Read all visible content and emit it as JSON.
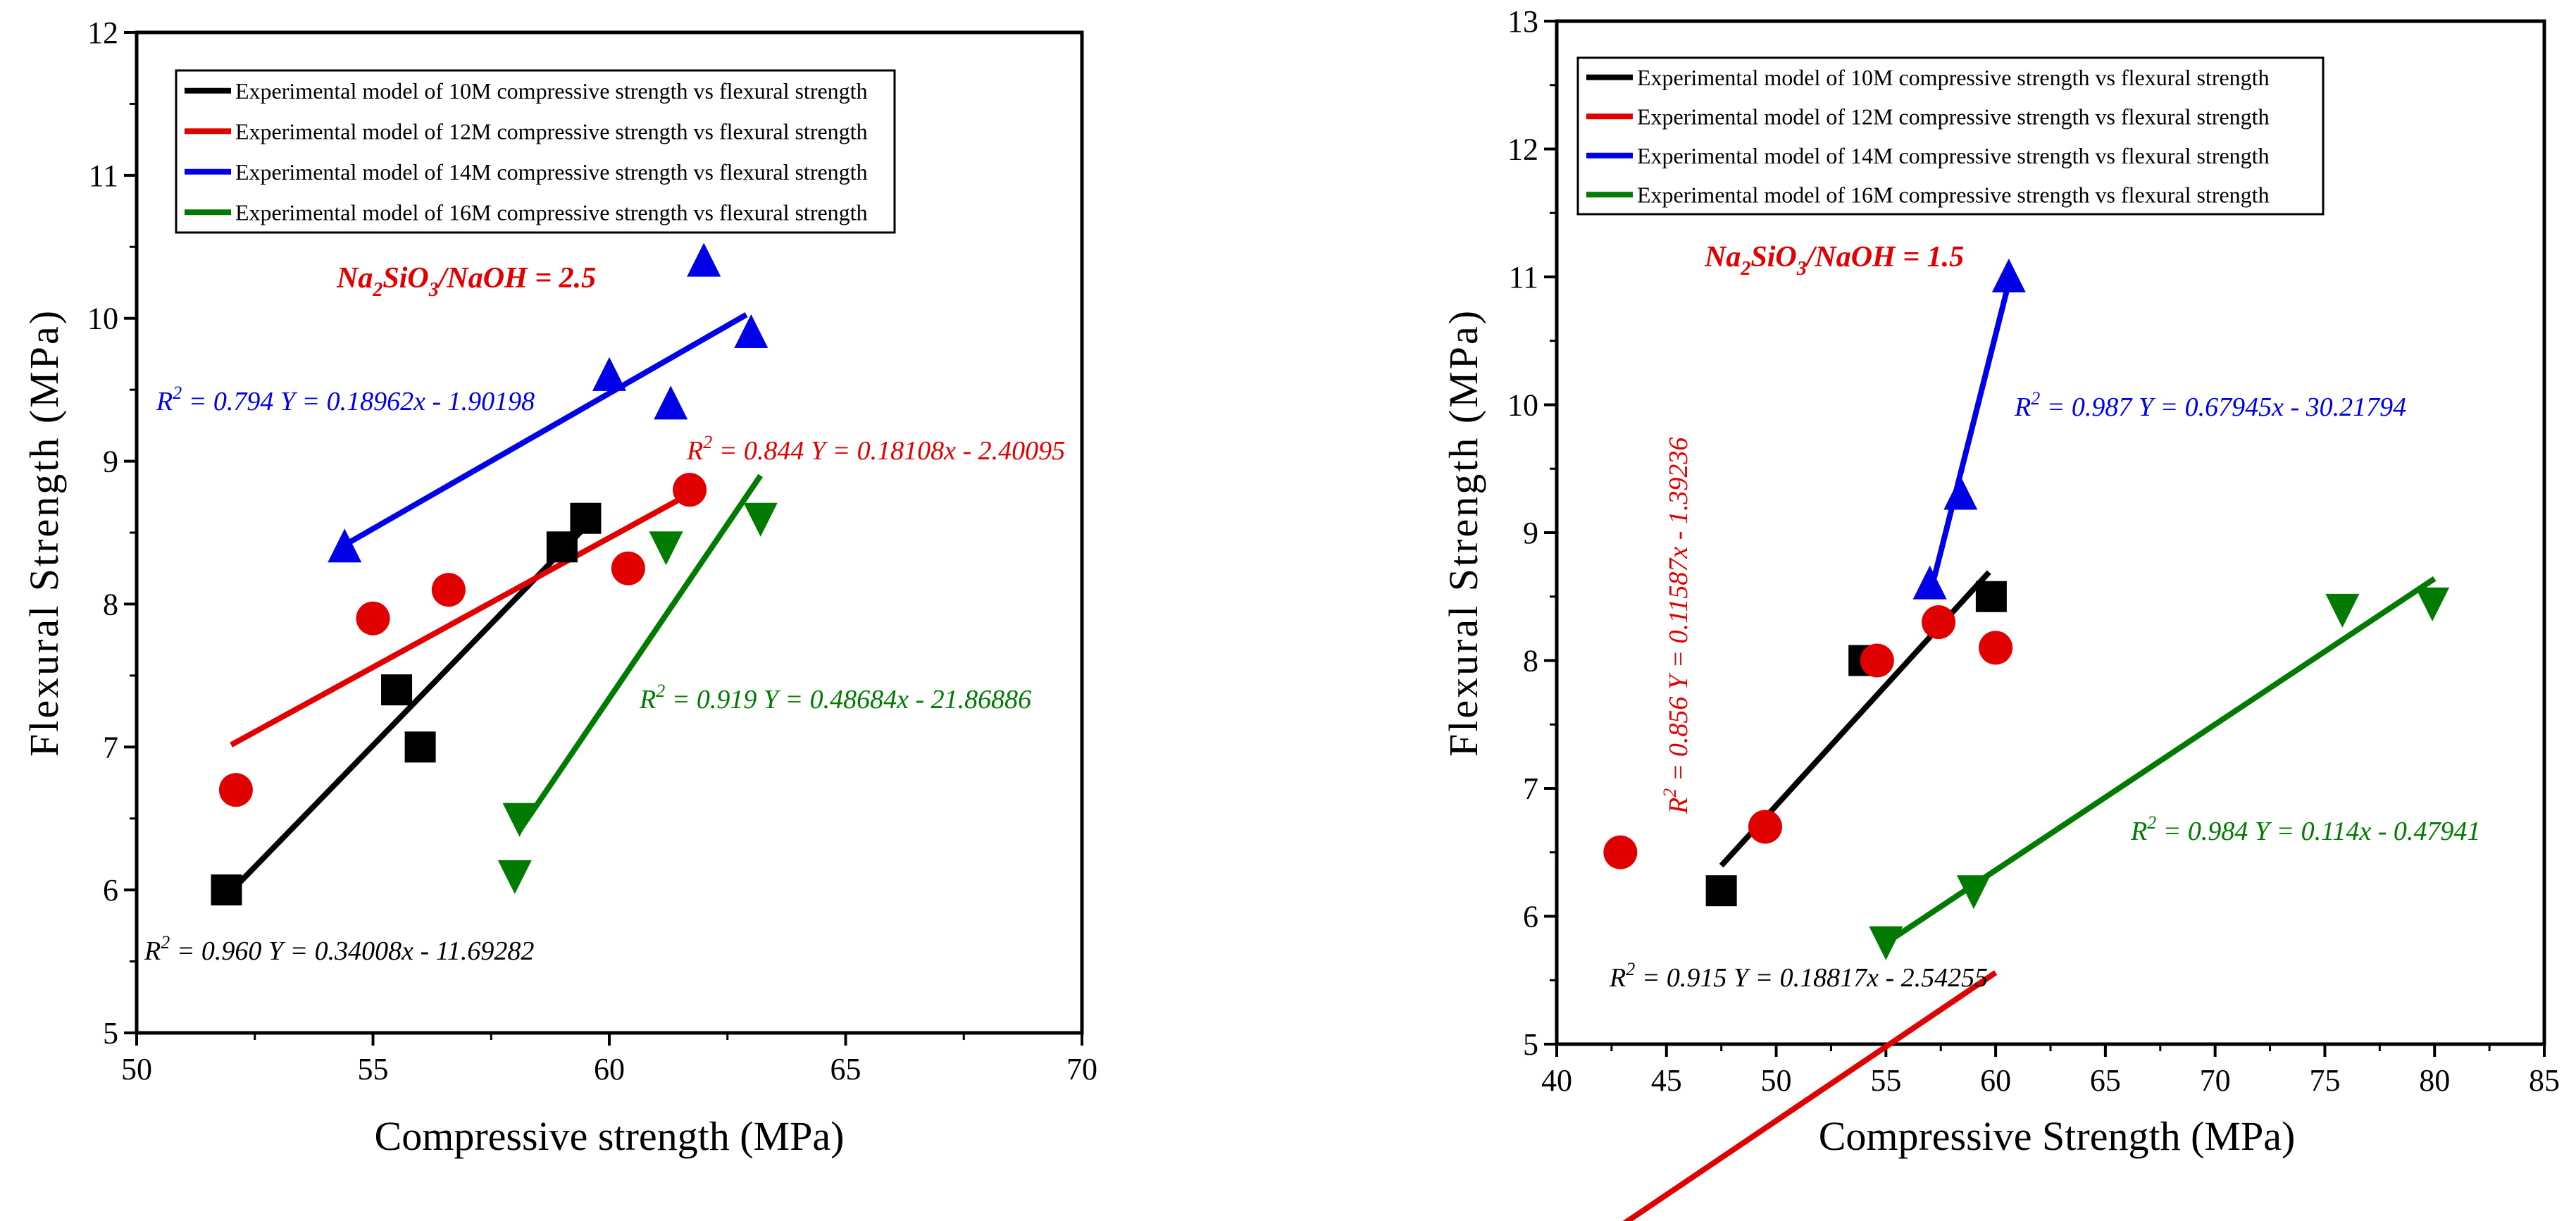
{
  "chart_data": [
    {
      "type": "scatter",
      "title": "",
      "xlabel": "Compressive strength (MPa)",
      "ylabel": "Flexural Strength (MPa)",
      "xlim": [
        50,
        70
      ],
      "ylim": [
        5,
        12
      ],
      "xticks": [
        50,
        55,
        60,
        65,
        70
      ],
      "yticks": [
        5,
        6,
        7,
        8,
        9,
        10,
        11,
        12
      ],
      "ratio_label": {
        "main": "Na",
        "s1": "2",
        "mid": "SiO",
        "s2": "3",
        "tail": "/NaOH = 2.5",
        "color": "#e00000"
      },
      "series": [
        {
          "name": "Experimental model of 10M compressive strength vs flexural strength",
          "color": "#000000",
          "marker": "square",
          "points": [
            [
              51.9,
              6.0
            ],
            [
              55.5,
              7.4
            ],
            [
              56.0,
              7.0
            ],
            [
              59.0,
              8.4
            ],
            [
              59.5,
              8.6
            ]
          ],
          "fit": {
            "x": [
              52.0,
              59.4
            ]
          },
          "annotation": {
            "r2": "0.960",
            "eq": "Y = 0.34008x - 11.69282"
          }
        },
        {
          "name": "Experimental model of 12M compressive strength vs flexural strength",
          "color": "#e00000",
          "marker": "circle",
          "points": [
            [
              52.1,
              6.7
            ],
            [
              55.0,
              7.9
            ],
            [
              56.6,
              8.1
            ],
            [
              60.4,
              8.25
            ],
            [
              61.7,
              8.8
            ]
          ],
          "fit": {
            "x": [
              52.0,
              61.6
            ]
          },
          "annotation": {
            "r2": "0.844",
            "eq": "Y = 0.18108x - 2.40095"
          }
        },
        {
          "name": "Experimental model of 14M compressive strength vs flexural strength",
          "color": "#0000e6",
          "marker": "triangle-up",
          "points": [
            [
              54.4,
              8.4
            ],
            [
              60.0,
              9.6
            ],
            [
              61.3,
              9.4
            ],
            [
              62.0,
              10.4
            ],
            [
              63.0,
              9.9
            ]
          ],
          "fit": {
            "x": [
              54.4,
              62.9
            ]
          },
          "annotation": {
            "r2": "0.794",
            "eq": "Y = 0.18962x - 1.90198"
          }
        },
        {
          "name": "Experimental model of 16M compressive strength vs flexural strength",
          "color": "#007a00",
          "marker": "triangle-down",
          "points": [
            [
              58.0,
              6.1
            ],
            [
              58.1,
              6.5
            ],
            [
              61.2,
              8.4
            ],
            [
              63.2,
              8.6
            ]
          ],
          "fit": {
            "x": [
              58.1,
              63.2
            ]
          },
          "annotation": {
            "r2": "0.919",
            "eq": "Y = 0.48684x - 21.86886"
          }
        }
      ]
    },
    {
      "type": "scatter",
      "title": "",
      "xlabel": "Compressive Strength (MPa)",
      "ylabel": "Flexural Strength (MPa)",
      "xlim": [
        40,
        85
      ],
      "ylim": [
        5,
        13
      ],
      "xticks": [
        40,
        45,
        50,
        55,
        60,
        65,
        70,
        75,
        80,
        85
      ],
      "yticks": [
        5,
        6,
        7,
        8,
        9,
        10,
        11,
        12,
        13
      ],
      "ratio_label": {
        "main": "Na",
        "s1": "2",
        "mid": "SiO",
        "s2": "3",
        "tail": "/NaOH = 1.5",
        "color": "#e00000"
      },
      "series": [
        {
          "name": "Experimental model of 10M compressive strength vs flexural strength",
          "color": "#000000",
          "marker": "square",
          "points": [
            [
              47.5,
              6.2
            ],
            [
              54.0,
              8.0
            ],
            [
              59.8,
              8.5
            ]
          ],
          "fit": {
            "x": [
              47.5,
              59.7
            ]
          },
          "annotation": {
            "r2": "0.915",
            "eq": "Y = 0.18817x - 2.54255"
          }
        },
        {
          "name": "Experimental model of 12M compressive strength vs flexural strength",
          "color": "#e00000",
          "marker": "circle",
          "points": [
            [
              42.9,
              6.5
            ],
            [
              49.5,
              6.7
            ],
            [
              54.6,
              8.0
            ],
            [
              57.4,
              8.3
            ],
            [
              60.0,
              8.1
            ]
          ],
          "fit": {
            "x": [
              42.9,
              60.0
            ]
          },
          "annotation": {
            "r2": "0.856",
            "eq": "Y = 0.11587x - 1.39236"
          }
        },
        {
          "name": "Experimental model of 14M compressive strength vs flexural strength",
          "color": "#0000e6",
          "marker": "triangle-up",
          "points": [
            [
              57.0,
              8.6
            ],
            [
              58.4,
              9.3
            ],
            [
              60.6,
              11.0
            ]
          ],
          "fit": {
            "x": [
              57.2,
              60.6
            ]
          },
          "annotation": {
            "r2": "0.987",
            "eq": "Y = 0.67945x - 30.21794"
          }
        },
        {
          "name": "Experimental model of 16M compressive strength vs flexural strength",
          "color": "#007a00",
          "marker": "triangle-down",
          "points": [
            [
              55.0,
              5.8
            ],
            [
              59.0,
              6.2
            ],
            [
              75.8,
              8.4
            ],
            [
              79.9,
              8.45
            ]
          ],
          "fit": {
            "x": [
              55.0,
              80.0
            ]
          },
          "annotation": {
            "r2": "0.984",
            "eq": "Y = 0.114x - 0.47941"
          }
        }
      ]
    }
  ]
}
